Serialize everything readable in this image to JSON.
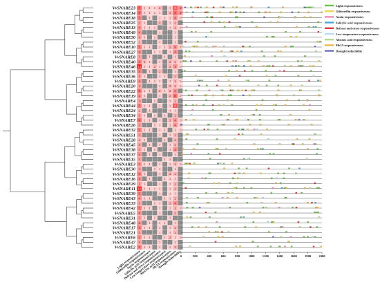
{
  "genes": [
    "VvSNARE23",
    "VvSNARE14",
    "VvSNARE18",
    "VvSNARE25",
    "VvSNARE13",
    "VvSNARE49",
    "VvSNARE50",
    "VvSNARE52",
    "VvSNARE10",
    "VvSNARE27",
    "VvSNARE8",
    "VvSNARE40",
    "VvSNARE46",
    "VvSNARE35",
    "VvSNARE36",
    "VvSNARE9",
    "VvSNARE20",
    "VvSNARE22",
    "VvSNARE19",
    "VvSNARE4",
    "VvSNARE44",
    "VvSNARE24",
    "VvSNARE34",
    "VvSNARE7",
    "VvSNARE26",
    "VvSNARE32",
    "VvSNARE51",
    "VvSNARE28",
    "VvSNARE45",
    "VvSNARE38",
    "VvSNARE37",
    "VvSNARE15",
    "VvSNARE3",
    "VvSNARE30",
    "VvSNARE12",
    "VvSNARE16",
    "VvSNARE29",
    "VvSNARE11",
    "VvSNARE39",
    "VvSNARE43",
    "VvSNARE33",
    "VvSNARE42",
    "VvSNARE5",
    "VvSNARE31",
    "VvSNARE48",
    "VvSNARE17",
    "VvSNARE21",
    "VvSNARE6",
    "VvSNARE47",
    "VvSNARE2"
  ],
  "heatmap_columns": [
    "Light responsiveness",
    "Gibberellin responsiveness",
    "Auxin responsiveness",
    "Salicylic acid responsiveness",
    "Defense and stress responsiveness",
    "Low-temperature responsiveness",
    "Abscisic acid responsiveness",
    "MeJA responsiveness",
    "Drought inducibility"
  ],
  "heatmap_values": [
    [
      7,
      1,
      1,
      1,
      2,
      0,
      1,
      8,
      4
    ],
    [
      6,
      1,
      1,
      1,
      1,
      0,
      2,
      6,
      4
    ],
    [
      5,
      0,
      1,
      0,
      1,
      1,
      1,
      4,
      1
    ],
    [
      3,
      1,
      0,
      0,
      2,
      0,
      1,
      2,
      0
    ],
    [
      4,
      1,
      1,
      1,
      0,
      0,
      1,
      2,
      1
    ],
    [
      4,
      0,
      0,
      0,
      1,
      0,
      0,
      1,
      0
    ],
    [
      3,
      1,
      0,
      1,
      0,
      0,
      0,
      1,
      0
    ],
    [
      2,
      0,
      0,
      0,
      1,
      0,
      0,
      1,
      0
    ],
    [
      5,
      1,
      1,
      0,
      1,
      1,
      2,
      4,
      1
    ],
    [
      4,
      0,
      0,
      1,
      1,
      0,
      1,
      4,
      0
    ],
    [
      3,
      0,
      1,
      0,
      0,
      1,
      0,
      1,
      0
    ],
    [
      5,
      2,
      1,
      0,
      1,
      0,
      2,
      2,
      1
    ],
    [
      13,
      1,
      1,
      2,
      1,
      0,
      2,
      4,
      1
    ],
    [
      5,
      0,
      1,
      0,
      2,
      0,
      0,
      1,
      0
    ],
    [
      3,
      1,
      0,
      0,
      1,
      1,
      0,
      2,
      0
    ],
    [
      4,
      0,
      1,
      1,
      1,
      0,
      1,
      2,
      1
    ],
    [
      3,
      0,
      0,
      0,
      1,
      0,
      2,
      2,
      1
    ],
    [
      6,
      1,
      1,
      0,
      2,
      1,
      2,
      4,
      0
    ],
    [
      4,
      1,
      0,
      0,
      1,
      0,
      2,
      6,
      1
    ],
    [
      3,
      0,
      0,
      1,
      0,
      0,
      1,
      2,
      0
    ],
    [
      5,
      1,
      1,
      0,
      1,
      0,
      1,
      8,
      0
    ],
    [
      2,
      0,
      1,
      0,
      0,
      0,
      1,
      1,
      0
    ],
    [
      3,
      1,
      0,
      1,
      0,
      1,
      0,
      2,
      0
    ],
    [
      6,
      1,
      1,
      0,
      1,
      0,
      2,
      4,
      1
    ],
    [
      3,
      0,
      0,
      1,
      1,
      0,
      1,
      4,
      1
    ],
    [
      5,
      1,
      1,
      0,
      1,
      1,
      0,
      1,
      1
    ],
    [
      3,
      0,
      0,
      0,
      1,
      0,
      1,
      2,
      0
    ],
    [
      2,
      1,
      0,
      0,
      0,
      1,
      0,
      2,
      0
    ],
    [
      3,
      0,
      1,
      0,
      1,
      0,
      1,
      2,
      0
    ],
    [
      3,
      1,
      0,
      1,
      0,
      0,
      1,
      4,
      0
    ],
    [
      4,
      0,
      1,
      0,
      1,
      0,
      0,
      1,
      0
    ],
    [
      3,
      0,
      0,
      0,
      0,
      1,
      1,
      0,
      0
    ],
    [
      4,
      1,
      1,
      0,
      1,
      0,
      1,
      2,
      1
    ],
    [
      3,
      0,
      0,
      1,
      1,
      0,
      0,
      1,
      0
    ],
    [
      5,
      1,
      0,
      0,
      1,
      0,
      2,
      2,
      0
    ],
    [
      4,
      0,
      1,
      0,
      0,
      1,
      1,
      1,
      0
    ],
    [
      3,
      1,
      0,
      0,
      1,
      0,
      1,
      2,
      0
    ],
    [
      12,
      1,
      1,
      1,
      1,
      0,
      1,
      2,
      0
    ],
    [
      5,
      0,
      0,
      0,
      1,
      0,
      1,
      1,
      0
    ],
    [
      4,
      1,
      1,
      0,
      0,
      1,
      1,
      2,
      0
    ],
    [
      3,
      0,
      0,
      1,
      1,
      0,
      2,
      4,
      0
    ],
    [
      5,
      1,
      1,
      0,
      1,
      0,
      1,
      2,
      1
    ],
    [
      4,
      0,
      0,
      0,
      1,
      0,
      0,
      2,
      0
    ],
    [
      3,
      1,
      0,
      1,
      0,
      0,
      1,
      0,
      0
    ],
    [
      4,
      0,
      1,
      0,
      1,
      1,
      0,
      1,
      0
    ],
    [
      5,
      1,
      1,
      0,
      1,
      0,
      1,
      2,
      0
    ],
    [
      3,
      0,
      0,
      0,
      1,
      0,
      1,
      2,
      0
    ],
    [
      4,
      1,
      1,
      0,
      0,
      1,
      2,
      1,
      1
    ],
    [
      3,
      0,
      0,
      0,
      1,
      0,
      0,
      1,
      0
    ],
    [
      5,
      1,
      1,
      0,
      1,
      0,
      1,
      2,
      0
    ]
  ],
  "legend": [
    {
      "label": "Light responsiveness",
      "color": "#6cc04a"
    },
    {
      "label": "Gibberellin responsiveness",
      "color": "#f2d14b"
    },
    {
      "label": "Auxin responsiveness",
      "color": "#f08ab9"
    },
    {
      "label": "Salicylic acid responsiveness",
      "color": "#49a6d8"
    },
    {
      "label": "Defense and stress responsiveness",
      "color": "#e03a3a"
    },
    {
      "label": "Low-temperature responsiveness",
      "color": "#b6ddf0"
    },
    {
      "label": "Abscisic acid responsiveness",
      "color": "#b4dc8c"
    },
    {
      "label": "MeJA responsiveness",
      "color": "#f0b94a"
    },
    {
      "label": "Drought inducibility",
      "color": "#6a6fc4"
    }
  ],
  "x_axis": {
    "ticks": [
      "0",
      "200",
      "400",
      "600",
      "800",
      "1000",
      "1200",
      "1400",
      "1600",
      "1800",
      "2000"
    ],
    "max": 2000
  },
  "colors": {
    "zero": "#8c8c8c",
    "low": "#ffffff",
    "high": "#d42020",
    "line": "#555555"
  },
  "promoter_seed": 17
}
